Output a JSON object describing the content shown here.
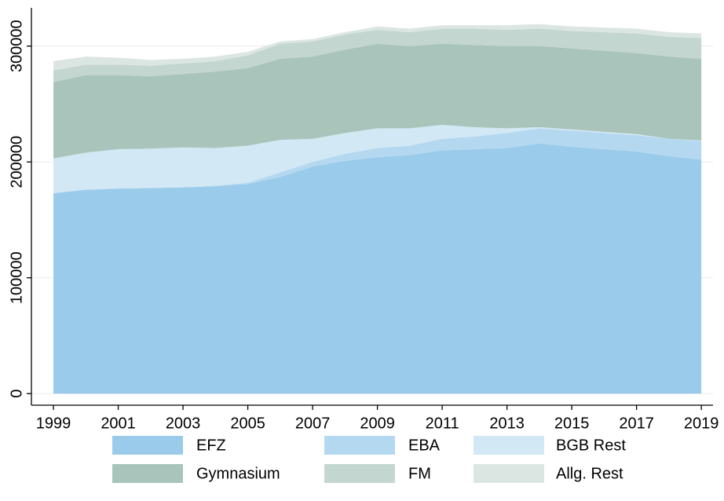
{
  "chart_data": {
    "type": "stacked_area",
    "x": [
      1999,
      2000,
      2001,
      2002,
      2003,
      2004,
      2005,
      2006,
      2007,
      2008,
      2009,
      2010,
      2011,
      2012,
      2013,
      2014,
      2015,
      2016,
      2017,
      2018,
      2019
    ],
    "series": [
      {
        "name": "EFZ",
        "color": "#9bcbea",
        "values": [
          173000,
          176000,
          177000,
          177500,
          178000,
          179000,
          181000,
          187000,
          196000,
          201000,
          204000,
          206000,
          210000,
          211000,
          212000,
          216000,
          213000,
          211000,
          209000,
          205000,
          202000
        ]
      },
      {
        "name": "EBA",
        "color": "#b4d8f0",
        "values": [
          0,
          0,
          0,
          0,
          0,
          500,
          1000,
          4000,
          4000,
          6000,
          8000,
          8000,
          10000,
          11000,
          13000,
          13000,
          14000,
          14000,
          14000,
          15000,
          16000
        ]
      },
      {
        "name": "BGB Rest",
        "color": "#d2e8f4",
        "values": [
          30000,
          32000,
          34000,
          34000,
          34500,
          32500,
          32000,
          28000,
          20000,
          18000,
          17000,
          15000,
          12000,
          8000,
          4000,
          1000,
          1000,
          1000,
          1000,
          0,
          500
        ]
      },
      {
        "name": "Gymnasium",
        "color": "#a9c4bb",
        "values": [
          66000,
          67000,
          64000,
          62500,
          63500,
          66000,
          67000,
          70000,
          71000,
          72000,
          73000,
          71000,
          70000,
          71000,
          71000,
          70000,
          70000,
          70000,
          70000,
          71000,
          70500
        ]
      },
      {
        "name": "FM",
        "color": "#c4d6d0",
        "values": [
          10000,
          9000,
          9000,
          9000,
          9000,
          9000,
          11000,
          13000,
          13000,
          13000,
          12000,
          12000,
          13000,
          14000,
          14000,
          15000,
          15000,
          16000,
          17000,
          17000,
          18000
        ]
      },
      {
        "name": "Allg. Rest",
        "color": "#dbe6e2",
        "values": [
          8000,
          7000,
          6000,
          5000,
          4000,
          4000,
          3000,
          2000,
          2000,
          2000,
          3000,
          3000,
          3000,
          3000,
          4000,
          4000,
          4000,
          4000,
          4000,
          4000,
          4000
        ]
      }
    ],
    "xlim": [
      1998.32,
      2019.36
    ],
    "xticks": [
      1999,
      2001,
      2003,
      2005,
      2007,
      2009,
      2011,
      2013,
      2015,
      2017,
      2019
    ],
    "ylim": [
      -10000,
      333000
    ],
    "yticks": [
      0,
      100000,
      200000,
      300000
    ],
    "grid": true,
    "legend": "bottom"
  }
}
